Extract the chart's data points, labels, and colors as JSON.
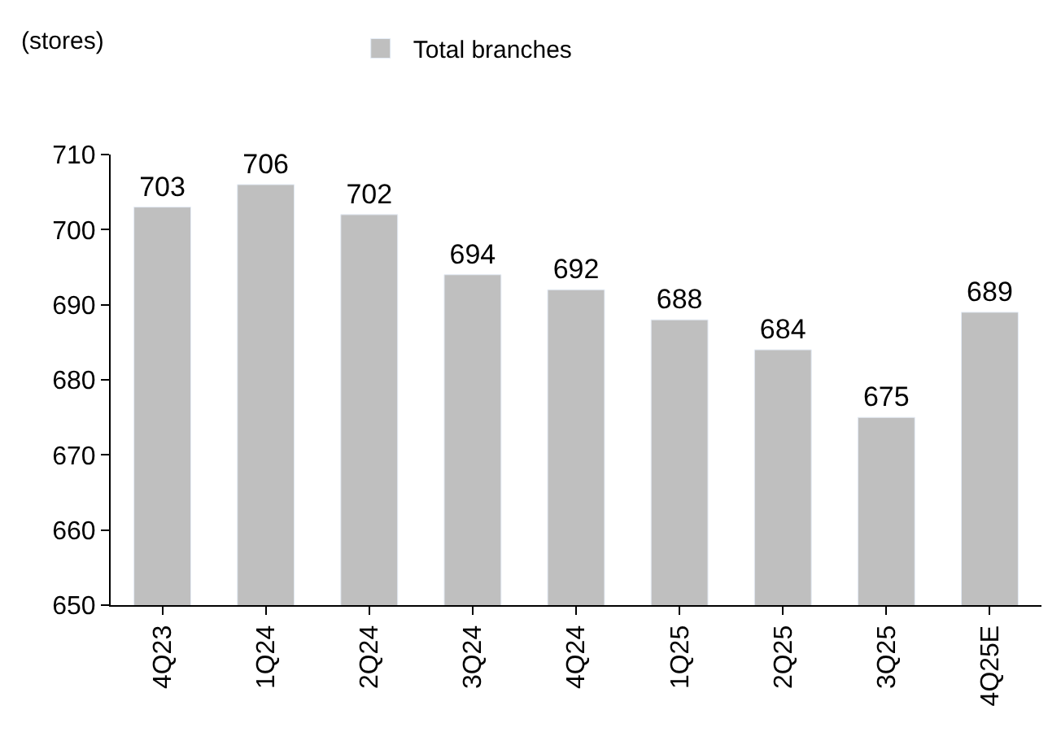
{
  "chart_data": {
    "type": "bar",
    "annotations": [
      "(stores)"
    ],
    "categories": [
      "4Q23",
      "1Q24",
      "2Q24",
      "3Q24",
      "4Q24",
      "1Q25",
      "2Q25",
      "3Q25",
      "4Q25E"
    ],
    "series": [
      {
        "name": "Total branches",
        "color": "#bfbfbf",
        "values": [
          703,
          706,
          702,
          694,
          692,
          688,
          684,
          675,
          689
        ]
      }
    ],
    "ylim": [
      650,
      710
    ],
    "yticks": [
      650,
      660,
      670,
      680,
      690,
      700,
      710
    ],
    "data_labels": true,
    "legend": "top",
    "grid": false
  }
}
